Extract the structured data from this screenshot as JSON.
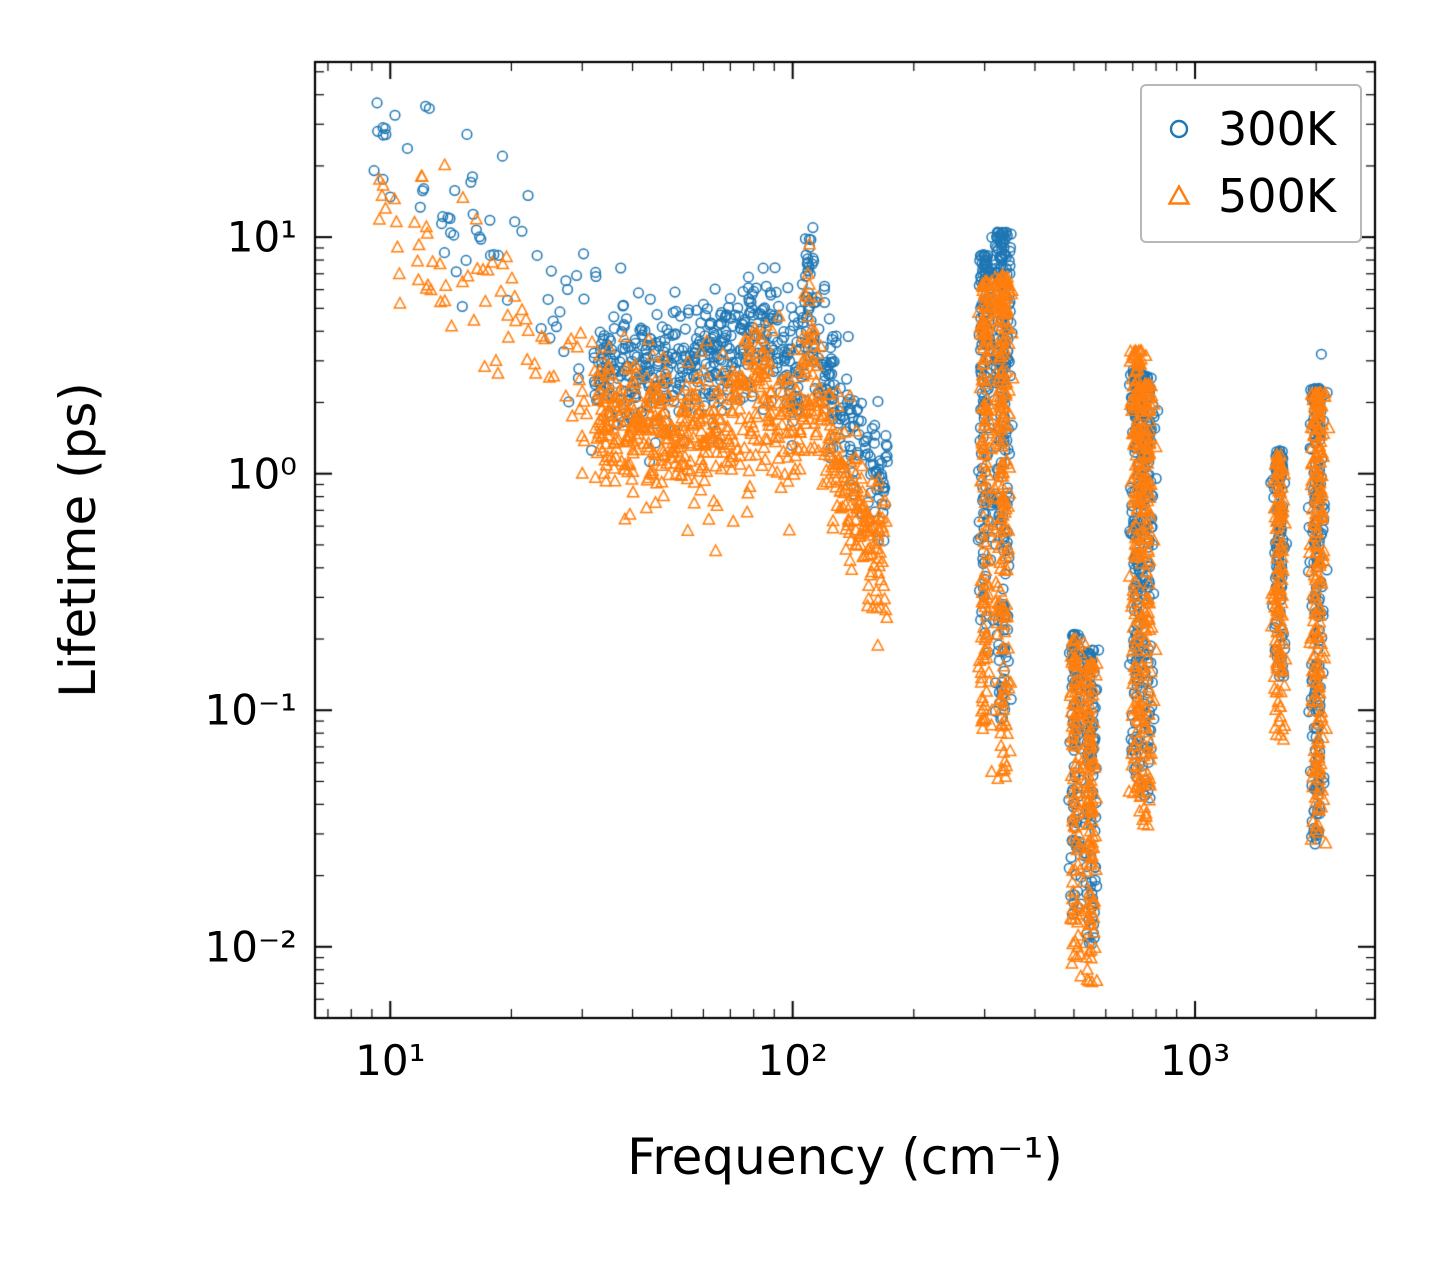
{
  "chart_data": {
    "type": "scatter",
    "title": "",
    "xlabel": "Frequency (cm⁻¹)",
    "ylabel": "Lifetime (ps)",
    "xscale": "log",
    "yscale": "log",
    "xlim": [
      6.5,
      2800
    ],
    "ylim": [
      0.005,
      55
    ],
    "grid": false,
    "xticks": [
      {
        "v": 10,
        "label": "10¹"
      },
      {
        "v": 100,
        "label": "10²"
      },
      {
        "v": 1000,
        "label": "10³"
      }
    ],
    "yticks": [
      {
        "v": 10,
        "label": "10¹"
      },
      {
        "v": 1,
        "label": "10⁰"
      },
      {
        "v": 0.1,
        "label": "10⁻¹"
      },
      {
        "v": 0.01,
        "label": "10⁻²"
      }
    ],
    "legend": {
      "position": "upper-right",
      "entries": [
        {
          "label": "300K",
          "marker": "circle",
          "color": "#1f77b4"
        },
        {
          "label": "500K",
          "marker": "triangle",
          "color": "#ff7f0e"
        }
      ]
    },
    "series": [
      {
        "name": "300K",
        "marker": "circle",
        "color": "#1f77b4",
        "clusters": [
          {
            "type": "band",
            "count": 55,
            "spread": 0.16,
            "anchors": [
              [
                9,
                28
              ],
              [
                11,
                22
              ],
              [
                13,
                15
              ],
              [
                15,
                12
              ],
              [
                17,
                10
              ],
              [
                20,
                7.5
              ],
              [
                24,
                5.5
              ],
              [
                28,
                4.2
              ],
              [
                32,
                3.4
              ]
            ]
          },
          {
            "type": "band",
            "count": 650,
            "spread": 0.13,
            "anchors": [
              [
                32,
                3.1
              ],
              [
                40,
                2.6
              ],
              [
                48,
                2.7
              ],
              [
                56,
                2.9
              ],
              [
                64,
                3.1
              ],
              [
                72,
                3.4
              ],
              [
                80,
                3.9
              ],
              [
                86,
                4.3
              ],
              [
                92,
                3.4
              ],
              [
                98,
                2.7
              ],
              [
                104,
                3.0
              ],
              [
                110,
                4.6
              ],
              [
                115,
                3.8
              ],
              [
                122,
                2.7
              ],
              [
                130,
                2.0
              ],
              [
                138,
                1.7
              ],
              [
                146,
                1.4
              ],
              [
                155,
                1.15
              ],
              [
                165,
                0.95
              ],
              [
                172,
                0.9
              ]
            ]
          },
          {
            "type": "band",
            "count": 18,
            "spread": 0.12,
            "anchors": [
              [
                105,
                6.0
              ],
              [
                110,
                7.5
              ],
              [
                114,
                6.5
              ]
            ]
          },
          {
            "type": "column",
            "count": 150,
            "x": 300,
            "x_jitter": 0.008,
            "y_top": 8.5,
            "y_bottom": 0.16,
            "skew": 1.6
          },
          {
            "type": "column",
            "count": 230,
            "x": 332,
            "x_jitter": 0.01,
            "y_top": 10.5,
            "y_bottom": 0.09,
            "skew": 1.6
          },
          {
            "type": "column",
            "count": 90,
            "x": 505,
            "x_jitter": 0.008,
            "y_top": 0.21,
            "y_bottom": 0.013,
            "skew": 1.5
          },
          {
            "type": "column",
            "count": 110,
            "x": 548,
            "x_jitter": 0.008,
            "y_top": 0.18,
            "y_bottom": 0.01,
            "skew": 1.5
          },
          {
            "type": "column",
            "count": 160,
            "x": 715,
            "x_jitter": 0.007,
            "y_top": 2.8,
            "y_bottom": 0.05,
            "skew": 1.5
          },
          {
            "type": "column",
            "count": 160,
            "x": 760,
            "x_jitter": 0.009,
            "y_top": 2.6,
            "y_bottom": 0.04,
            "skew": 1.5
          },
          {
            "type": "column",
            "count": 130,
            "x": 1620,
            "x_jitter": 0.007,
            "y_top": 1.25,
            "y_bottom": 0.13,
            "skew": 1.4
          },
          {
            "type": "column",
            "count": 210,
            "x": 2010,
            "x_jitter": 0.009,
            "y_top": 2.3,
            "y_bottom": 0.027,
            "skew": 1.5
          }
        ],
        "outliers": [
          [
            12.5,
            35
          ],
          [
            9.3,
            28
          ],
          [
            9.6,
            27
          ],
          [
            19,
            22
          ],
          [
            22,
            15
          ],
          [
            16,
            18
          ],
          [
            110,
            9.8
          ],
          [
            108,
            8.4
          ],
          [
            332,
            10.4
          ],
          [
            330,
            9.9
          ],
          [
            2060,
            3.2
          ],
          [
            86,
            6.2
          ],
          [
            80,
            5.9
          ],
          [
            60,
            5.2
          ],
          [
            70,
            5.5
          ]
        ]
      },
      {
        "name": "500K",
        "marker": "triangle",
        "color": "#ff7f0e",
        "clusters": [
          {
            "type": "band",
            "count": 70,
            "spread": 0.15,
            "anchors": [
              [
                9,
                17
              ],
              [
                11,
                10
              ],
              [
                13,
                8
              ],
              [
                15,
                7
              ],
              [
                17,
                5.5
              ],
              [
                20,
                4.4
              ],
              [
                24,
                3.2
              ],
              [
                28,
                2.5
              ],
              [
                32,
                2.0
              ]
            ]
          },
          {
            "type": "band",
            "count": 700,
            "spread": 0.15,
            "anchors": [
              [
                32,
                1.9
              ],
              [
                40,
                1.55
              ],
              [
                48,
                1.5
              ],
              [
                56,
                1.5
              ],
              [
                64,
                1.55
              ],
              [
                72,
                1.7
              ],
              [
                80,
                2.1
              ],
              [
                86,
                2.4
              ],
              [
                92,
                1.9
              ],
              [
                98,
                1.5
              ],
              [
                104,
                1.7
              ],
              [
                110,
                2.9
              ],
              [
                115,
                2.3
              ],
              [
                122,
                1.5
              ],
              [
                130,
                1.1
              ],
              [
                138,
                0.85
              ],
              [
                146,
                0.7
              ],
              [
                155,
                0.55
              ],
              [
                165,
                0.5
              ],
              [
                172,
                0.55
              ]
            ]
          },
          {
            "type": "band",
            "count": 15,
            "spread": 0.13,
            "anchors": [
              [
                106,
                4.0
              ],
              [
                110,
                5.0
              ],
              [
                114,
                4.2
              ]
            ]
          },
          {
            "type": "column",
            "count": 150,
            "x": 300,
            "x_jitter": 0.008,
            "y_top": 6.5,
            "y_bottom": 0.08,
            "skew": 1.5
          },
          {
            "type": "column",
            "count": 220,
            "x": 332,
            "x_jitter": 0.01,
            "y_top": 6.8,
            "y_bottom": 0.05,
            "skew": 1.5
          },
          {
            "type": "column",
            "count": 110,
            "x": 505,
            "x_jitter": 0.008,
            "y_top": 0.2,
            "y_bottom": 0.008,
            "skew": 1.4
          },
          {
            "type": "column",
            "count": 120,
            "x": 548,
            "x_jitter": 0.008,
            "y_top": 0.16,
            "y_bottom": 0.007,
            "skew": 1.4
          },
          {
            "type": "column",
            "count": 170,
            "x": 715,
            "x_jitter": 0.007,
            "y_top": 3.3,
            "y_bottom": 0.04,
            "skew": 1.5
          },
          {
            "type": "column",
            "count": 160,
            "x": 760,
            "x_jitter": 0.009,
            "y_top": 2.4,
            "y_bottom": 0.032,
            "skew": 1.5
          },
          {
            "type": "column",
            "count": 130,
            "x": 1620,
            "x_jitter": 0.007,
            "y_top": 1.2,
            "y_bottom": 0.075,
            "skew": 1.4
          },
          {
            "type": "column",
            "count": 220,
            "x": 2010,
            "x_jitter": 0.009,
            "y_top": 2.2,
            "y_bottom": 0.026,
            "skew": 1.5
          }
        ],
        "outliers": [
          [
            9.4,
            17.5
          ],
          [
            9.6,
            16.5
          ],
          [
            12,
            18
          ],
          [
            110,
            6.3
          ],
          [
            108,
            5.6
          ],
          [
            332,
            6.9
          ],
          [
            520,
            0.0075
          ],
          [
            540,
            0.008
          ],
          [
            158,
            0.27
          ],
          [
            34,
            1.0
          ],
          [
            36,
            1.05
          ],
          [
            30,
            1.0
          ]
        ]
      }
    ]
  }
}
